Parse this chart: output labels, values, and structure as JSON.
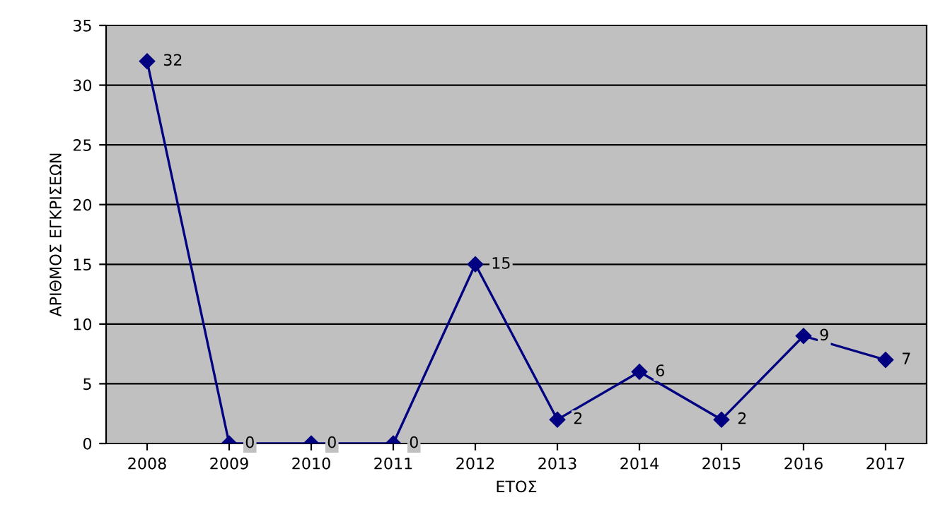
{
  "chart_data": {
    "type": "line",
    "xlabel": "ΕΤΟΣ",
    "ylabel": "ΑΡΙΘΜΟΣ ΕΓΚΡΙΣΕΩΝ",
    "categories": [
      "2008",
      "2009",
      "2010",
      "2011",
      "2012",
      "2013",
      "2014",
      "2015",
      "2016",
      "2017"
    ],
    "series": [
      {
        "color": "#000080",
        "values": [
          32,
          0,
          0,
          0,
          15,
          2,
          6,
          2,
          9,
          7
        ]
      }
    ],
    "ylim": [
      0,
      35
    ],
    "yticks": [
      0,
      5,
      10,
      15,
      20,
      25,
      30,
      35
    ],
    "grid": "y",
    "marker": "diamond",
    "line_style": "solid",
    "data_labels": true,
    "legend": false
  }
}
